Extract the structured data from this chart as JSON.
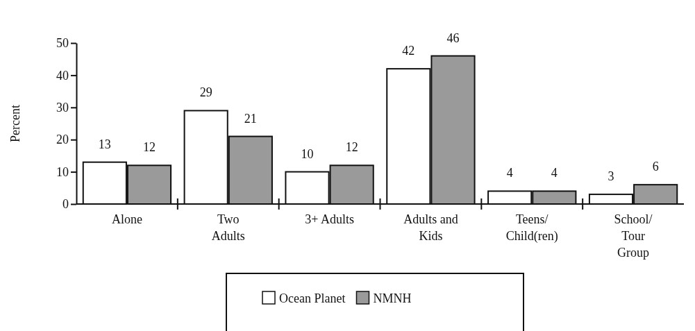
{
  "chart_data": {
    "type": "bar",
    "ylabel": "Percent",
    "categories": [
      "Alone",
      "Two\nAdults",
      "3+ Adults",
      "Adults and\nKids",
      "Teens/\nChild(ren)",
      "School/\nTour\nGroup"
    ],
    "series": [
      {
        "name": "Ocean Planet",
        "color": "#ffffff",
        "values": [
          13,
          29,
          10,
          42,
          4,
          3
        ]
      },
      {
        "name": "NMNH",
        "color": "#9a9a9a",
        "values": [
          12,
          21,
          12,
          46,
          4,
          6
        ]
      }
    ],
    "ylim": [
      0,
      50
    ],
    "yticks": [
      0,
      10,
      20,
      30,
      40,
      50
    ],
    "grid": false,
    "legend": "bottom",
    "data_labels": true
  }
}
